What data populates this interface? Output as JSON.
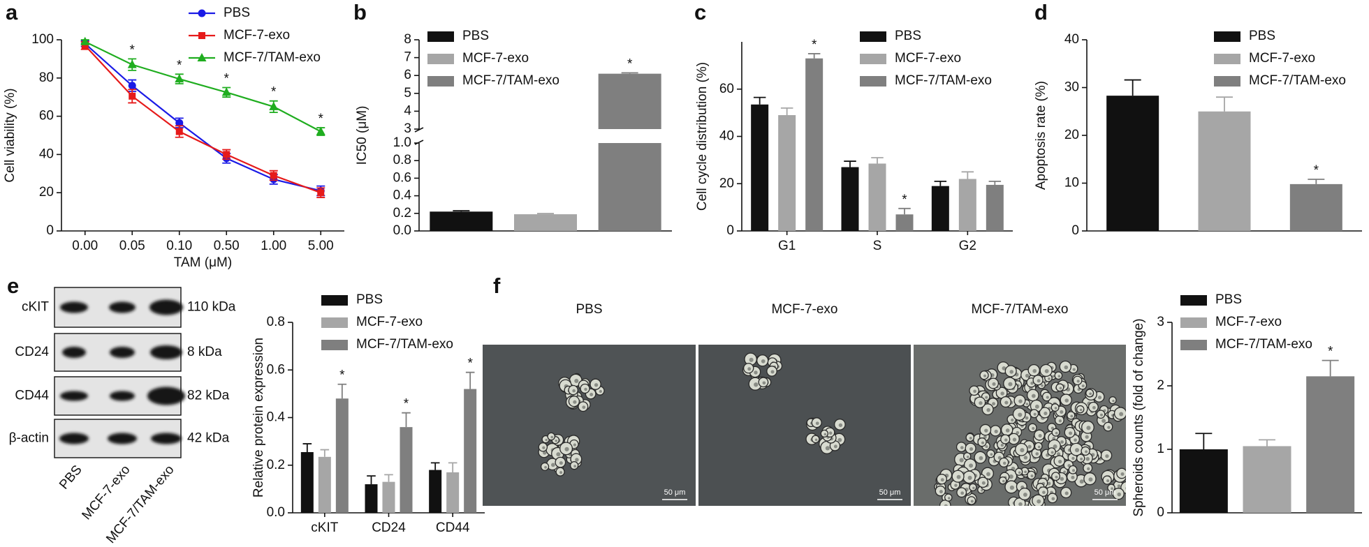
{
  "panel_labels": [
    "a",
    "b",
    "c",
    "d",
    "e",
    "f"
  ],
  "chart_data": [
    {
      "type": "line",
      "xlabel": "TAM (μM)",
      "ylabel": "Cell viability (%)",
      "categories": [
        "0.00",
        "0.05",
        "0.10",
        "0.50",
        "1.00",
        "5.00"
      ],
      "ylim": [
        0,
        100
      ],
      "yticks": [
        0,
        20,
        40,
        60,
        80,
        100
      ],
      "series": [
        {
          "name": "PBS",
          "color": "#1a1ae6",
          "marker": "circle",
          "values": [
            98,
            76,
            56.5,
            38,
            27,
            21
          ],
          "errors": [
            1.5,
            3,
            2.5,
            2.5,
            2.5,
            2.5
          ]
        },
        {
          "name": "MCF-7-exo",
          "color": "#e61a1a",
          "marker": "square",
          "values": [
            97,
            70.5,
            52,
            40,
            29,
            20
          ],
          "errors": [
            2,
            3.5,
            3,
            2.5,
            2.5,
            2.5
          ]
        },
        {
          "name": "MCF-7/TAM-exo",
          "color": "#1fad1f",
          "marker": "triangle",
          "values": [
            99,
            87,
            79.5,
            72.5,
            65,
            52
          ],
          "errors": [
            1,
            3,
            2.5,
            2.5,
            3,
            2
          ],
          "annotations": [
            null,
            "*",
            "*",
            "*",
            "*",
            "*"
          ]
        }
      ]
    },
    {
      "type": "bar",
      "ylabel": "IC50 (μM)",
      "categories": [
        null
      ],
      "ylim": [
        0,
        8
      ],
      "axis_break": [
        1,
        3
      ],
      "yticks": [
        {
          "value": 0,
          "label": "0.0"
        },
        0.2,
        0.4,
        0.6,
        0.8,
        {
          "value": 1,
          "label": "1.0"
        },
        3,
        4,
        5,
        6,
        7,
        8
      ],
      "series": [
        {
          "name": "PBS",
          "color": "#111111",
          "values": [
            0.22
          ],
          "errors": [
            0.01
          ]
        },
        {
          "name": "MCF-7-exo",
          "color": "#a6a6a6",
          "values": [
            0.19
          ],
          "errors": [
            0.008
          ]
        },
        {
          "name": "MCF-7/TAM-exo",
          "color": "#7f7f7f",
          "values": [
            6.1
          ],
          "errors": [
            0.05
          ],
          "annotations": [
            "*"
          ]
        }
      ]
    },
    {
      "type": "bar",
      "ylabel": "Cell cycle distribution (%)",
      "categories": [
        "G1",
        "S",
        "G2"
      ],
      "ylim": [
        0,
        80
      ],
      "yticks": [
        0,
        20,
        40,
        60
      ],
      "series": [
        {
          "name": "PBS",
          "color": "#111111",
          "values": [
            53.5,
            27,
            19
          ],
          "errors": [
            3,
            2.5,
            2
          ]
        },
        {
          "name": "MCF-7-exo",
          "color": "#a6a6a6",
          "values": [
            49,
            28.5,
            22
          ],
          "errors": [
            3,
            2.5,
            3
          ]
        },
        {
          "name": "MCF-7/TAM-exo",
          "color": "#7f7f7f",
          "values": [
            73,
            7,
            19.5
          ],
          "errors": [
            2,
            2.5,
            1.5
          ],
          "annotations": [
            "*",
            "*",
            null
          ]
        }
      ]
    },
    {
      "type": "bar",
      "ylabel": "Apoptosis rate (%)",
      "categories": [
        null
      ],
      "ylim": [
        0,
        40
      ],
      "yticks": [
        0,
        10,
        20,
        30,
        40
      ],
      "series": [
        {
          "name": "PBS",
          "color": "#111111",
          "values": [
            28.3
          ],
          "errors": [
            3.3
          ]
        },
        {
          "name": "MCF-7-exo",
          "color": "#a6a6a6",
          "values": [
            25
          ],
          "errors": [
            3
          ]
        },
        {
          "name": "MCF-7/TAM-exo",
          "color": "#7f7f7f",
          "values": [
            9.8
          ],
          "errors": [
            1
          ],
          "annotations": [
            "*"
          ]
        }
      ]
    },
    {
      "type": "bar",
      "ylabel": "Relative protein expression",
      "categories": [
        "cKIT",
        "CD24",
        "CD44"
      ],
      "ylim": [
        0,
        0.8
      ],
      "yticks": [
        {
          "value": 0,
          "label": "0.0"
        },
        0.2,
        0.4,
        0.6,
        0.8
      ],
      "series": [
        {
          "name": "PBS",
          "color": "#111111",
          "values": [
            0.255,
            0.12,
            0.18
          ],
          "errors": [
            0.035,
            0.035,
            0.03
          ]
        },
        {
          "name": "MCF-7-exo",
          "color": "#a6a6a6",
          "values": [
            0.235,
            0.13,
            0.17
          ],
          "errors": [
            0.03,
            0.03,
            0.04
          ]
        },
        {
          "name": "MCF-7/TAM-exo",
          "color": "#7f7f7f",
          "values": [
            0.48,
            0.36,
            0.52
          ],
          "errors": [
            0.06,
            0.06,
            0.07
          ],
          "annotations": [
            "*",
            "*",
            "*"
          ]
        }
      ]
    },
    {
      "type": "bar",
      "ylabel": "Spheroids counts (fold of change)",
      "categories": [
        null
      ],
      "ylim": [
        0,
        3
      ],
      "yticks": [
        0,
        1,
        2,
        3
      ],
      "series": [
        {
          "name": "PBS",
          "color": "#111111",
          "values": [
            1.0
          ],
          "errors": [
            0.25
          ]
        },
        {
          "name": "MCF-7-exo",
          "color": "#a6a6a6",
          "values": [
            1.05
          ],
          "errors": [
            0.1
          ]
        },
        {
          "name": "MCF-7/TAM-exo",
          "color": "#7f7f7f",
          "values": [
            2.15
          ],
          "errors": [
            0.25
          ],
          "annotations": [
            "*"
          ]
        }
      ]
    }
  ],
  "blot": {
    "proteins": [
      "cKIT",
      "CD24",
      "CD44",
      "β-actin"
    ],
    "sizes": [
      "110 kDa",
      "8 kDa",
      "82 kDa",
      "42 kDa"
    ],
    "lanes": [
      "PBS",
      "MCF-7-exo",
      "MCF-7/TAM-exo"
    ]
  },
  "micrographs": {
    "titles": [
      "PBS",
      "MCF-7-exo",
      "MCF-7/TAM-exo"
    ],
    "scale_bar": "50 μm"
  }
}
